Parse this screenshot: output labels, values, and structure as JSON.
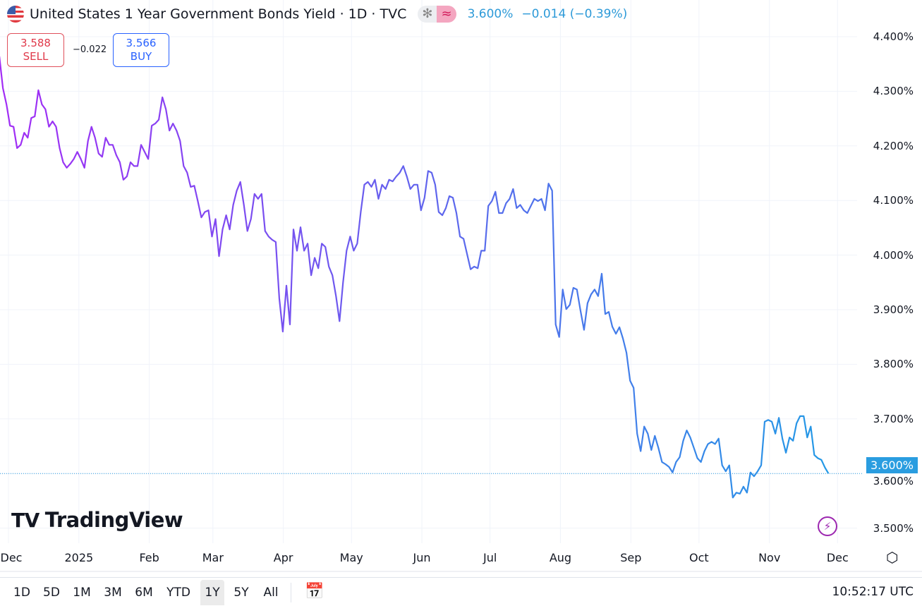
{
  "header": {
    "title": "United States 1 Year Government Bonds Yield · 1D · TVC",
    "badge_1": "✻",
    "badge_2": "≈",
    "last": "3.600%",
    "change": "−0.014 (−0.39%)"
  },
  "trade": {
    "sell_price": "3.588",
    "sell_label": "SELL",
    "spread": "−0.022",
    "buy_price": "3.566",
    "buy_label": "BUY"
  },
  "branding": {
    "logo": "TradingView"
  },
  "price_tag": "3.600%",
  "range_buttons": [
    "1D",
    "5D",
    "1M",
    "3M",
    "6M",
    "YTD",
    "1Y",
    "5Y",
    "All"
  ],
  "active_range": "1Y",
  "clock": "10:52:17 UTC",
  "colors": {
    "line_start": "#a22cf5",
    "line_end": "#2399e6",
    "price_tag": "#2a9de0",
    "sell": "#e0394a",
    "buy": "#2962ff"
  },
  "icons": [
    "us-flag-icon",
    "calendar-goto-icon",
    "settings-icon",
    "lightning-icon"
  ],
  "chart_data": {
    "type": "line",
    "title": "United States 1 Year Government Bonds Yield",
    "ylabel": "",
    "xlabel": "",
    "ylim": [
      3.48,
      4.43
    ],
    "xlim": [
      "2024-11-27",
      "2025-12-09"
    ],
    "grid": true,
    "y_ticks": [
      "4.400%",
      "4.300%",
      "4.200%",
      "4.100%",
      "4.000%",
      "3.900%",
      "3.800%",
      "3.700%",
      "3.600%",
      "3.500%"
    ],
    "x_ticks": [
      "Dec",
      "2025",
      "Feb",
      "Mar",
      "Apr",
      "May",
      "Jun",
      "Jul",
      "Aug",
      "Sep",
      "Oct",
      "Nov",
      "Dec"
    ],
    "date_range": [
      "2024-11-27",
      "2025-11-27"
    ],
    "last_value": 3.6,
    "values": [
      4.364,
      4.306,
      4.276,
      4.237,
      4.235,
      4.196,
      4.202,
      4.224,
      4.215,
      4.251,
      4.254,
      4.302,
      4.276,
      4.267,
      4.235,
      4.245,
      4.235,
      4.196,
      4.17,
      4.16,
      4.167,
      4.176,
      4.189,
      4.176,
      4.16,
      4.209,
      4.235,
      4.215,
      4.186,
      4.18,
      4.215,
      4.202,
      4.202,
      4.183,
      4.17,
      4.138,
      4.144,
      4.17,
      4.163,
      4.163,
      4.202,
      4.189,
      4.176,
      4.237,
      4.241,
      4.248,
      4.289,
      4.267,
      4.228,
      4.241,
      4.228,
      4.209,
      4.163,
      4.151,
      4.125,
      4.127,
      4.099,
      4.069,
      4.079,
      4.082,
      4.034,
      4.066,
      3.998,
      4.047,
      4.073,
      4.047,
      4.092,
      4.118,
      4.134,
      4.092,
      4.044,
      4.066,
      4.112,
      4.103,
      4.112,
      4.044,
      4.034,
      4.028,
      4.024,
      3.921,
      3.86,
      3.944,
      3.873,
      4.047,
      4.008,
      4.051,
      4.008,
      4.021,
      3.963,
      3.995,
      3.976,
      4.021,
      4.015,
      3.979,
      3.963,
      3.925,
      3.879,
      3.95,
      4.008,
      4.034,
      4.008,
      4.021,
      4.079,
      4.129,
      4.134,
      4.125,
      4.138,
      4.103,
      4.129,
      4.121,
      4.138,
      4.135,
      4.144,
      4.151,
      4.163,
      4.144,
      4.121,
      4.129,
      4.129,
      4.082,
      4.105,
      4.154,
      4.151,
      4.129,
      4.079,
      4.073,
      4.086,
      4.108,
      4.105,
      4.077,
      4.034,
      4.03,
      4.002,
      3.974,
      3.979,
      3.976,
      4.008,
      4.008,
      4.09,
      4.099,
      4.116,
      4.077,
      4.077,
      4.095,
      4.103,
      4.121,
      4.086,
      4.092,
      4.082,
      4.077,
      4.09,
      4.103,
      4.099,
      4.103,
      4.082,
      4.131,
      4.118,
      3.873,
      3.85,
      3.937,
      3.901,
      3.909,
      3.94,
      3.937,
      3.899,
      3.863,
      3.912,
      3.928,
      3.937,
      3.925,
      3.966,
      3.892,
      3.896,
      3.869,
      3.856,
      3.868,
      3.847,
      3.821,
      3.77,
      3.757,
      3.673,
      3.641,
      3.686,
      3.673,
      3.643,
      3.669,
      3.647,
      3.621,
      3.617,
      3.612,
      3.602,
      3.621,
      3.63,
      3.66,
      3.679,
      3.666,
      3.647,
      3.628,
      3.621,
      3.641,
      3.654,
      3.658,
      3.654,
      3.664,
      3.615,
      3.604,
      3.615,
      3.556,
      3.565,
      3.563,
      3.576,
      3.565,
      3.602,
      3.595,
      3.604,
      3.615,
      3.695,
      3.698,
      3.695,
      3.673,
      3.702,
      3.664,
      3.638,
      3.666,
      3.66,
      3.692,
      3.705,
      3.705,
      3.666,
      3.686,
      3.634,
      3.628,
      3.625,
      3.611,
      3.6
    ]
  }
}
